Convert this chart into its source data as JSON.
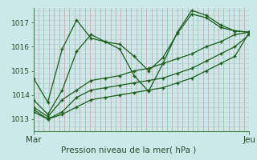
{
  "bg_color": "#cce8e8",
  "line_color": "#1a5c1a",
  "title": "Pression niveau de la mer( hPa )",
  "xlabel_mar": "Mar",
  "xlabel_jeu": "Jeu",
  "ylim": [
    1012.5,
    1017.6
  ],
  "yticks": [
    1013,
    1014,
    1015,
    1016,
    1017
  ],
  "series": [
    [
      1014.7,
      1013.7,
      1015.9,
      1017.1,
      1016.35,
      1016.2,
      1016.1,
      1015.6,
      1015.0,
      1015.55,
      1016.55,
      1017.35,
      1017.2,
      1016.8,
      1016.65,
      1016.6
    ],
    [
      1013.8,
      1013.2,
      1014.2,
      1015.8,
      1016.5,
      1016.2,
      1015.9,
      1014.8,
      1014.15,
      1015.3,
      1016.6,
      1017.5,
      1017.3,
      1016.9,
      1016.65,
      1016.6
    ],
    [
      1013.5,
      1013.1,
      1013.8,
      1014.2,
      1014.6,
      1014.7,
      1014.8,
      1015.0,
      1015.1,
      1015.3,
      1015.5,
      1015.7,
      1016.0,
      1016.2,
      1016.5,
      1016.6
    ],
    [
      1013.4,
      1013.0,
      1013.3,
      1013.9,
      1014.2,
      1014.3,
      1014.4,
      1014.5,
      1014.6,
      1014.7,
      1014.9,
      1015.1,
      1015.4,
      1015.7,
      1016.0,
      1016.5
    ],
    [
      1013.3,
      1013.0,
      1013.2,
      1013.5,
      1013.8,
      1013.9,
      1014.0,
      1014.1,
      1014.2,
      1014.3,
      1014.5,
      1014.7,
      1015.0,
      1015.3,
      1015.6,
      1016.6
    ]
  ],
  "n_points": 16,
  "vgrid_color": "#c8a0a0",
  "hgrid_color": "#a8cccc",
  "n_vgrid": 42,
  "n_hgrid_minor": 5,
  "spine_color": "#448844",
  "tick_color": "#2a4a2a",
  "ylabel_fontsize": 6.5,
  "xlabel_fontsize": 7.5
}
